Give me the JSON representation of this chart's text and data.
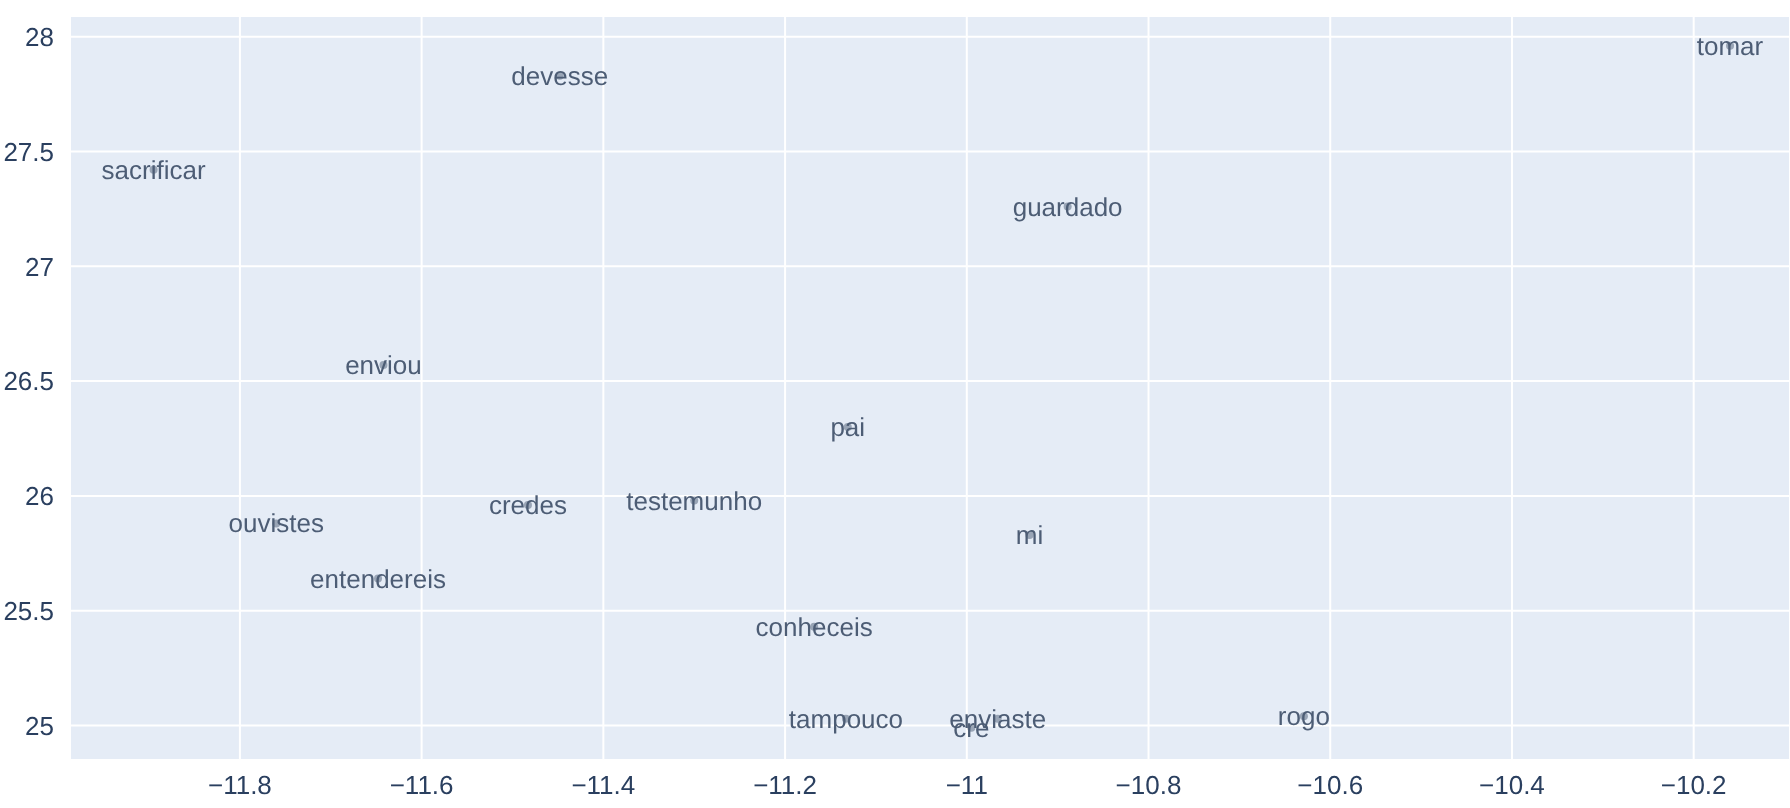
{
  "chart_data": {
    "type": "scatter",
    "grid": true,
    "x": [
      -11.895,
      -11.448,
      -10.889,
      -11.642,
      -11.131,
      -11.76,
      -11.483,
      -11.3,
      -10.931,
      -11.648,
      -11.168,
      -11.133,
      -10.966,
      -10.995,
      -10.629,
      -10.16
    ],
    "series": [
      {
        "color": "#4d5d75",
        "values": [
          27.42,
          27.83,
          27.26,
          26.57,
          26.3,
          25.88,
          25.96,
          25.98,
          25.83,
          25.64,
          25.43,
          25.03,
          25.03,
          24.99,
          25.04,
          27.96
        ],
        "value_labels": [
          "sacrificar",
          "devesse",
          "guardado",
          "enviou",
          "pai",
          "ouvistes",
          "credes",
          "testemunho",
          "mi",
          "entendereis",
          "conheceis",
          "tampouco",
          "enviaste",
          "cre",
          "rogo",
          "tomar"
        ]
      }
    ],
    "xlim": [
      -11.987,
      -10.094
    ],
    "ylim": [
      24.85,
      28.09
    ],
    "xticks": [
      {
        "value": -11.8,
        "label": "−11.8"
      },
      {
        "value": -11.6,
        "label": "−11.6"
      },
      {
        "value": -11.4,
        "label": "−11.4"
      },
      {
        "value": -11.2,
        "label": "−11.2"
      },
      {
        "value": -11,
        "label": "−11"
      },
      {
        "value": -10.8,
        "label": "−10.8"
      },
      {
        "value": -10.6,
        "label": "−10.6"
      },
      {
        "value": -10.4,
        "label": "−10.4"
      },
      {
        "value": -10.2,
        "label": "−10.2"
      }
    ],
    "yticks": [
      25,
      25.5,
      26,
      26.5,
      27,
      27.5,
      28
    ]
  }
}
